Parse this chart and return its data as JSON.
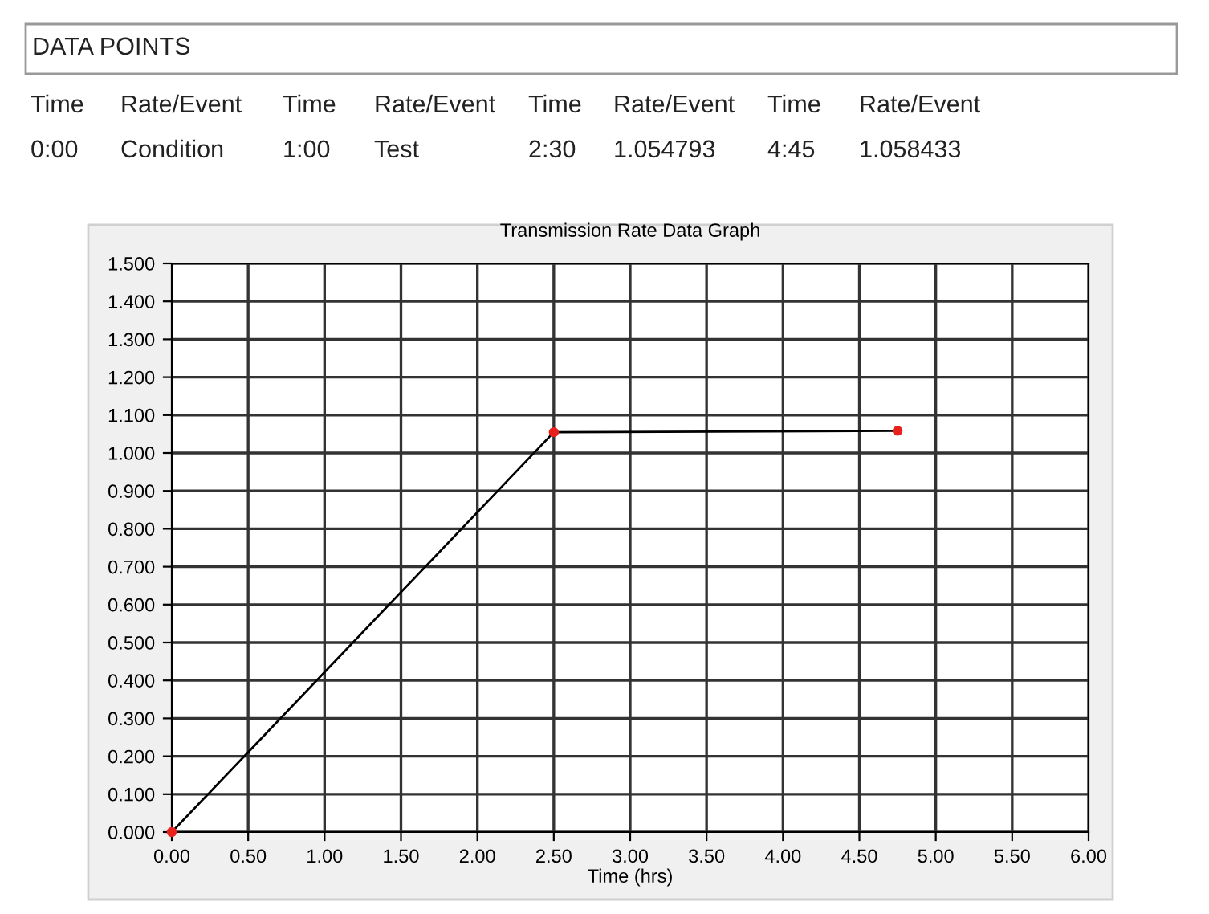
{
  "chart_data": {
    "type": "line",
    "title": "Transmission Rate Data Graph",
    "xlabel": "Time (hrs)",
    "series": [
      {
        "color": "#000000",
        "marker": "none",
        "x": [
          0,
          2.5,
          4.75
        ],
        "values": [
          0,
          1.054793,
          1.058433
        ]
      },
      {
        "type": "scatter",
        "color": "#e8211d",
        "marker": "circle",
        "x": [
          0,
          2.5,
          4.75
        ],
        "values": [
          0,
          1.054793,
          1.058433
        ]
      }
    ],
    "xlim": [
      0,
      6
    ],
    "ylim": [
      0,
      1.5
    ],
    "xticks": [
      {
        "value": 0,
        "label": "0.00"
      },
      {
        "value": 0.5,
        "label": "0.50"
      },
      {
        "value": 1,
        "label": "1.00"
      },
      {
        "value": 1.5,
        "label": "1.50"
      },
      {
        "value": 2,
        "label": "2.00"
      },
      {
        "value": 2.5,
        "label": "2.50"
      },
      {
        "value": 3,
        "label": "3.00"
      },
      {
        "value": 3.5,
        "label": "3.50"
      },
      {
        "value": 4,
        "label": "4.00"
      },
      {
        "value": 4.5,
        "label": "4.50"
      },
      {
        "value": 5,
        "label": "5.00"
      },
      {
        "value": 5.5,
        "label": "5.50"
      },
      {
        "value": 6,
        "label": "6.00"
      }
    ],
    "yticks": [
      {
        "value": 0,
        "label": "0.000"
      },
      {
        "value": 0.1,
        "label": "0.100"
      },
      {
        "value": 0.2,
        "label": "0.200"
      },
      {
        "value": 0.3,
        "label": "0.300"
      },
      {
        "value": 0.4,
        "label": "0.400"
      },
      {
        "value": 0.5,
        "label": "0.500"
      },
      {
        "value": 0.6,
        "label": "0.600"
      },
      {
        "value": 0.7,
        "label": "0.700"
      },
      {
        "value": 0.8,
        "label": "0.800"
      },
      {
        "value": 0.9,
        "label": "0.900"
      },
      {
        "value": 1.0,
        "label": "1.000"
      },
      {
        "value": 1.1,
        "label": "1.100"
      },
      {
        "value": 1.2,
        "label": "1.200"
      },
      {
        "value": 1.3,
        "label": "1.300"
      },
      {
        "value": 1.4,
        "label": "1.400"
      },
      {
        "value": 1.5,
        "label": "1.500"
      }
    ],
    "grid": true,
    "annotations": [
      "DATA POINTS",
      "Time",
      "Rate/Event",
      "Time",
      "Rate/Event",
      "Time",
      "Rate/Event",
      "Time",
      "Rate/Event",
      "0:00",
      "Condition",
      "1:00",
      "Test",
      "2:30",
      "1.054793",
      "4:45",
      "1.058433"
    ]
  }
}
